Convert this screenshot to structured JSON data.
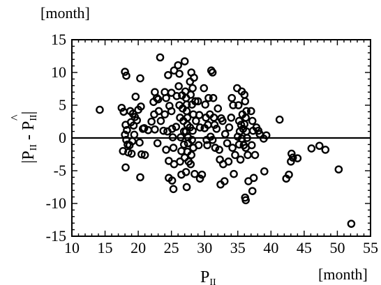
{
  "chart_data": {
    "type": "scatter",
    "xunit": "[month]",
    "yunit": "[month]",
    "xlim": [
      10,
      55
    ],
    "ylim": [
      -15,
      15
    ],
    "xticks": [
      10,
      15,
      20,
      25,
      30,
      35,
      40,
      45,
      50,
      55
    ],
    "yticks": [
      -15,
      -10,
      -5,
      0,
      5,
      10,
      15
    ],
    "grid": false,
    "reference_line_y": 0,
    "series": [
      {
        "marker": "open-circle",
        "color": "#000000",
        "points": [
          [
            14.2,
            4.3
          ],
          [
            17.5,
            4.6
          ],
          [
            17.8,
            4.0
          ],
          [
            18.0,
            10.1
          ],
          [
            18.2,
            9.5
          ],
          [
            18.1,
            2.0
          ],
          [
            18.3,
            1.2
          ],
          [
            18.0,
            0.5
          ],
          [
            18.2,
            -0.3
          ],
          [
            18.4,
            -1.0
          ],
          [
            17.7,
            -2.0
          ],
          [
            18.1,
            -4.5
          ],
          [
            18.5,
            -2.2
          ],
          [
            18.8,
            4.1
          ],
          [
            18.9,
            2.4
          ],
          [
            18.7,
            -1.1
          ],
          [
            19.1,
            -0.5
          ],
          [
            19.3,
            1.9
          ],
          [
            19.4,
            0.5
          ],
          [
            19.0,
            -2.4
          ],
          [
            19.2,
            3.7
          ],
          [
            19.6,
            6.3
          ],
          [
            19.8,
            2.7
          ],
          [
            19.5,
            3.2
          ],
          [
            20.0,
            4.3
          ],
          [
            20.2,
            -0.7
          ],
          [
            20.3,
            9.1
          ],
          [
            20.4,
            4.8
          ],
          [
            20.5,
            -2.5
          ],
          [
            20.7,
            1.4
          ],
          [
            20.9,
            1.5
          ],
          [
            21.0,
            -2.6
          ],
          [
            20.3,
            -6.0
          ],
          [
            21.5,
            1.2
          ],
          [
            22.0,
            2.5
          ],
          [
            22.3,
            5.5
          ],
          [
            22.5,
            7.0
          ],
          [
            22.8,
            6.1
          ],
          [
            22.4,
            3.6
          ],
          [
            22.5,
            1.3
          ],
          [
            22.9,
            -0.8
          ],
          [
            23.1,
            4.1
          ],
          [
            23.3,
            12.3
          ],
          [
            23.0,
            5.9
          ],
          [
            23.4,
            2.6
          ],
          [
            23.8,
            1.1
          ],
          [
            24.0,
            7.0
          ],
          [
            24.2,
            6.1
          ],
          [
            24.0,
            3.6
          ],
          [
            24.4,
            1.0
          ],
          [
            24.2,
            -1.8
          ],
          [
            24.6,
            -3.5
          ],
          [
            24.5,
            9.6
          ],
          [
            24.7,
            4.9
          ],
          [
            24.6,
            -6.1
          ],
          [
            25.0,
            6.9
          ],
          [
            25.0,
            4.1
          ],
          [
            25.1,
            1.4
          ],
          [
            25.2,
            0.1
          ],
          [
            25.3,
            -1.5
          ],
          [
            25.4,
            -4.0
          ],
          [
            25.1,
            -6.5
          ],
          [
            25.3,
            -7.8
          ],
          [
            25.4,
            10.3
          ],
          [
            25.8,
            6.4
          ],
          [
            25.7,
            1.7
          ],
          [
            26.0,
            11.1
          ],
          [
            26.1,
            7.9
          ],
          [
            26.2,
            5.0
          ],
          [
            26.3,
            3.1
          ],
          [
            26.4,
            0.1
          ],
          [
            26.5,
            -2.0
          ],
          [
            26.3,
            -3.6
          ],
          [
            26.5,
            -5.6
          ],
          [
            26.2,
            9.8
          ],
          [
            26.6,
            6.5
          ],
          [
            26.7,
            4.5
          ],
          [
            26.8,
            2.6
          ],
          [
            26.9,
            1.0
          ],
          [
            26.9,
            -1.0
          ],
          [
            27.0,
            -3.0
          ],
          [
            27.0,
            11.7
          ],
          [
            27.1,
            7.1
          ],
          [
            27.2,
            6.1
          ],
          [
            27.3,
            5.1
          ],
          [
            27.3,
            4.1
          ],
          [
            27.4,
            3.1
          ],
          [
            27.4,
            2.0
          ],
          [
            27.2,
            1.0
          ],
          [
            27.5,
            0.1
          ],
          [
            27.5,
            -0.8
          ],
          [
            27.4,
            -2.1
          ],
          [
            27.6,
            -3.6
          ],
          [
            27.2,
            -5.2
          ],
          [
            27.3,
            -7.5
          ],
          [
            27.8,
            8.6
          ],
          [
            27.9,
            6.6
          ],
          [
            27.8,
            1.6
          ],
          [
            27.9,
            -4.0
          ],
          [
            28.0,
            10.0
          ],
          [
            28.2,
            7.6
          ],
          [
            28.1,
            5.1
          ],
          [
            28.3,
            3.6
          ],
          [
            28.2,
            1.1
          ],
          [
            28.1,
            -0.3
          ],
          [
            28.3,
            -1.5
          ],
          [
            28.0,
            -2.6
          ],
          [
            28.4,
            9.2
          ],
          [
            28.6,
            5.6
          ],
          [
            28.7,
            2.6
          ],
          [
            28.5,
            -5.5
          ],
          [
            29.0,
            5.6
          ],
          [
            29.2,
            3.5
          ],
          [
            29.3,
            1.6
          ],
          [
            29.1,
            -1.1
          ],
          [
            29.3,
            -6.2
          ],
          [
            29.6,
            -5.6
          ],
          [
            29.9,
            7.6
          ],
          [
            30.1,
            5.1
          ],
          [
            30.2,
            3.1
          ],
          [
            30.0,
            1.5
          ],
          [
            30.3,
            -0.3
          ],
          [
            30.4,
            -1.1
          ],
          [
            30.6,
            6.1
          ],
          [
            30.8,
            3.6
          ],
          [
            30.5,
            2.0
          ],
          [
            30.9,
            0.2
          ],
          [
            31.0,
            10.3
          ],
          [
            31.2,
            10.0
          ],
          [
            31.3,
            6.1
          ],
          [
            31.4,
            3.1
          ],
          [
            31.5,
            2.0
          ],
          [
            31.2,
            -0.3
          ],
          [
            31.6,
            -1.5
          ],
          [
            31.8,
            1.4
          ],
          [
            32.0,
            4.5
          ],
          [
            32.2,
            -1.8
          ],
          [
            32.3,
            -3.3
          ],
          [
            32.5,
            3.0
          ],
          [
            32.7,
            2.6
          ],
          [
            32.4,
            -7.1
          ],
          [
            32.8,
            -4.0
          ],
          [
            33.1,
            0.6
          ],
          [
            33.4,
            -0.8
          ],
          [
            33.0,
            -6.6
          ],
          [
            33.7,
            1.6
          ],
          [
            33.6,
            -3.6
          ],
          [
            34.1,
            6.1
          ],
          [
            34.3,
            5.0
          ],
          [
            34.0,
            3.1
          ],
          [
            34.2,
            -1.5
          ],
          [
            34.4,
            -5.5
          ],
          [
            34.6,
            -2.6
          ],
          [
            34.9,
            7.6
          ],
          [
            35.1,
            5.0
          ],
          [
            35.2,
            2.6
          ],
          [
            35.3,
            1.0
          ],
          [
            35.0,
            0.2
          ],
          [
            35.2,
            -1.0
          ],
          [
            35.4,
            -3.3
          ],
          [
            35.6,
            7.1
          ],
          [
            35.7,
            3.6
          ],
          [
            35.5,
            2.0
          ],
          [
            35.8,
            1.4
          ],
          [
            35.6,
            -0.1
          ],
          [
            35.9,
            -1.1
          ],
          [
            36.0,
            6.6
          ],
          [
            36.1,
            5.6
          ],
          [
            36.3,
            4.1
          ],
          [
            36.2,
            3.1
          ],
          [
            36.0,
            2.1
          ],
          [
            36.3,
            1.0
          ],
          [
            36.4,
            0.0
          ],
          [
            36.2,
            -1.5
          ],
          [
            36.5,
            -2.6
          ],
          [
            36.1,
            -9.1
          ],
          [
            36.2,
            -9.5
          ],
          [
            36.6,
            -6.6
          ],
          [
            37.0,
            4.1
          ],
          [
            37.2,
            2.6
          ],
          [
            37.3,
            1.1
          ],
          [
            37.1,
            -1.1
          ],
          [
            37.4,
            -6.1
          ],
          [
            37.2,
            -8.1
          ],
          [
            37.6,
            -2.6
          ],
          [
            37.8,
            1.6
          ],
          [
            38.1,
            1.1
          ],
          [
            38.3,
            0.6
          ],
          [
            38.9,
            -0.1
          ],
          [
            39.0,
            -5.1
          ],
          [
            39.3,
            0.4
          ],
          [
            41.3,
            2.8
          ],
          [
            42.3,
            -6.2
          ],
          [
            42.7,
            -5.6
          ],
          [
            43.1,
            -2.4
          ],
          [
            43.3,
            -3.0
          ],
          [
            43.0,
            -3.6
          ],
          [
            44.0,
            -3.1
          ],
          [
            46.1,
            -1.6
          ],
          [
            47.3,
            -1.2
          ],
          [
            48.2,
            -1.8
          ],
          [
            50.2,
            -4.8
          ],
          [
            52.1,
            -13.1
          ]
        ]
      }
    ]
  }
}
